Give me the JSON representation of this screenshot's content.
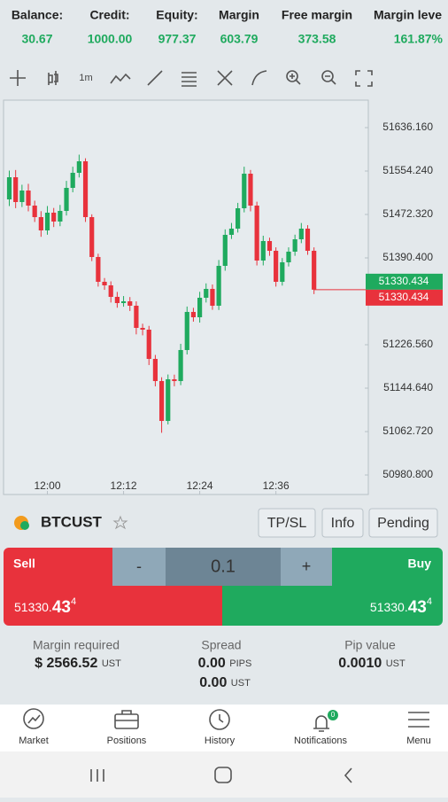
{
  "account": {
    "labels": [
      "Balance:",
      "Credit:",
      "Equity:",
      "Margin",
      "Free margin",
      "Margin leve"
    ],
    "values": [
      "30.67",
      "1000.00",
      "977.37",
      "603.79",
      "373.58",
      "161.87%"
    ]
  },
  "toolbar": {
    "timeframe": "1m"
  },
  "chart": {
    "type": "candlestick",
    "categories": [
      null,
      null,
      null,
      null,
      null,
      null,
      "12:00",
      null,
      null,
      null,
      null,
      null,
      null,
      null,
      null,
      null,
      null,
      null,
      "12:12",
      null,
      null,
      null,
      null,
      null,
      null,
      null,
      null,
      null,
      null,
      null,
      "12:24",
      null,
      null,
      null,
      null,
      null,
      null,
      null,
      null,
      null,
      null,
      null,
      "12:36",
      null,
      null,
      null,
      null,
      null,
      null
    ],
    "open": [
      51500.74,
      51542.54,
      51495.73,
      51517.46,
      51489.04,
      51467.31,
      51442.23,
      51475.67,
      51458.95,
      51479.01,
      51522.48,
      51550.9,
      51572.63,
      51467.31,
      51392.08,
      51345.27,
      51338.58,
      51316.85,
      51305.14,
      51308.49,
      51300.13,
      51258.33,
      51254.99,
      51199.82,
      51158.03,
      51082.79,
      51161.37,
      51158.03,
      51216.54,
      51288.43,
      51278.39,
      51315.17,
      51331.89,
      51300.13,
      51375.36,
      51433.87,
      51445.57,
      51484.03,
      51549.23,
      51489.04,
      51385.39,
      51422.17,
      51403.78,
      51345.27,
      51382.05,
      51402.11,
      51425.51,
      51445.57,
      51403.78
    ],
    "close": [
      51542.54,
      51495.73,
      51517.46,
      51489.04,
      51467.31,
      51442.23,
      51475.67,
      51458.95,
      51479.01,
      51522.48,
      51550.9,
      51572.63,
      51467.31,
      51392.08,
      51345.27,
      51338.58,
      51316.85,
      51305.14,
      51308.49,
      51300.13,
      51258.33,
      51254.99,
      51199.82,
      51158.03,
      51082.79,
      51161.37,
      51158.03,
      51216.54,
      51288.43,
      51278.39,
      51315.17,
      51331.89,
      51300.13,
      51375.36,
      51433.87,
      51445.57,
      51484.03,
      51549.23,
      51489.04,
      51385.39,
      51422.17,
      51403.78,
      51345.27,
      51382.05,
      51402.11,
      51425.51,
      51445.57,
      51403.78,
      51330.434
    ],
    "high": [
      51555.1,
      51556.2,
      51528.4,
      51530.1,
      51498.3,
      51478.5,
      51488.2,
      51484.6,
      51490.3,
      51535.7,
      51562.4,
      51585.2,
      51578.3,
      51472.6,
      51398.2,
      51352.4,
      51346.1,
      51326.2,
      51318.4,
      51316.5,
      51308.4,
      51266.2,
      51262.1,
      51207.3,
      51165.2,
      51170.4,
      51170.1,
      51228.3,
      51298.6,
      51296.2,
      51326.4,
      51342.3,
      51340.2,
      51386.4,
      51444.2,
      51456.3,
      51494.2,
      51562.4,
      51556.3,
      51496.4,
      51432.2,
      51428.5,
      51410.3,
      51390.1,
      51410.3,
      51434.2,
      51456.2,
      51452.1,
      51410.2
    ],
    "low": [
      51488.3,
      51484.2,
      51486.3,
      51478.2,
      51458.1,
      51430.2,
      51434.1,
      51448.6,
      51450.2,
      51470.3,
      51514.2,
      51542.1,
      51458.2,
      51384.3,
      51336.2,
      51330.1,
      51306.2,
      51296.4,
      51298.3,
      51290.2,
      51246.1,
      51244.3,
      51188.2,
      51148.1,
      51060.4,
      51076.2,
      51148.2,
      51150.3,
      51208.2,
      51270.1,
      51268.3,
      51306.2,
      51292.4,
      51292.1,
      51366.2,
      51426.1,
      51438.2,
      51476.3,
      51478.2,
      51376.1,
      51376.2,
      51394.3,
      51336.2,
      51338.1,
      51374.2,
      51394.3,
      51418.2,
      51396.2,
      51322.1
    ],
    "ylim": [
      50944.0,
      51688.0
    ],
    "yticks": [
      {
        "value": 50980.8,
        "label": "50980.800"
      },
      {
        "value": 51062.72,
        "label": "51062.720"
      },
      {
        "value": 51144.64,
        "label": "51144.640"
      },
      {
        "value": 51226.56,
        "label": "51226.560"
      },
      {
        "value": 51390.4,
        "label": "51390.400"
      },
      {
        "value": 51472.32,
        "label": "51472.320"
      },
      {
        "value": 51554.24,
        "label": "51554.240"
      },
      {
        "value": 51636.16,
        "label": "51636.160"
      }
    ],
    "ask_label": "51330.434",
    "bid_label": "51330.434",
    "up_color": "#1faa5e",
    "down_color": "#e8323c"
  },
  "symbol": {
    "name": "BTCUST",
    "buttons": [
      "TP/SL",
      "Info",
      "Pending"
    ]
  },
  "trade": {
    "sell": "Sell",
    "buy": "Buy",
    "minus": "-",
    "volume": "0.1",
    "plus": "+",
    "sell_price": {
      "main": "51330.",
      "big": "43",
      "sup": "4"
    },
    "buy_price": {
      "main": "51330.",
      "big": "43",
      "sup": "4"
    }
  },
  "details": {
    "margin": {
      "label": "Margin required",
      "value": "$ 2566.52",
      "unit": "UST"
    },
    "spread": {
      "label": "Spread",
      "value": "0.00",
      "unit": "PIPS",
      "value2": "0.00",
      "unit2": "UST"
    },
    "pip": {
      "label": "Pip value",
      "value": "0.0010",
      "unit": "UST"
    }
  },
  "nav": {
    "items": [
      "Market",
      "Positions",
      "History",
      "Notifications",
      "Menu"
    ],
    "badge": "0"
  }
}
